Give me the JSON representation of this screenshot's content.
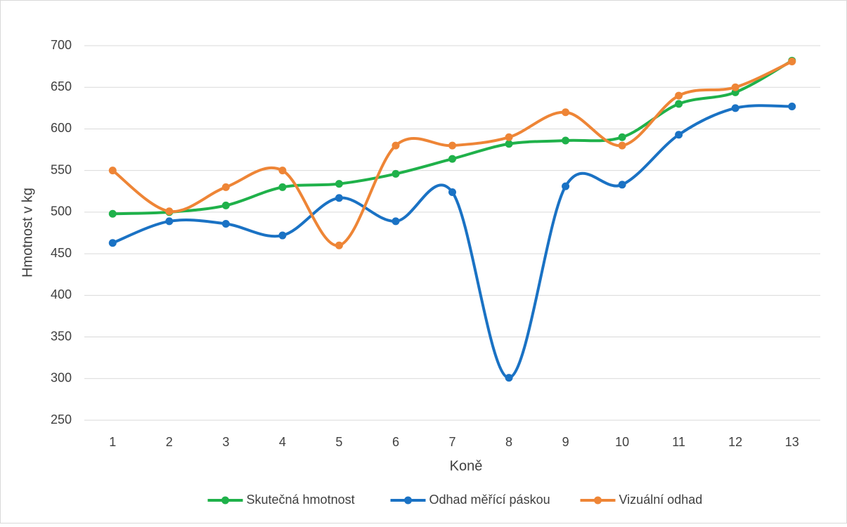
{
  "chart_data": {
    "type": "line",
    "x_label": "Koně",
    "y_label": "Hmotnost v kg",
    "categories": [
      "1",
      "2",
      "3",
      "4",
      "5",
      "6",
      "7",
      "8",
      "9",
      "10",
      "11",
      "12",
      "13"
    ],
    "series": [
      {
        "name": "Skutečná hmotnost",
        "color": "#1fb14a",
        "values": [
          498,
          500,
          508,
          530,
          534,
          546,
          564,
          582,
          586,
          590,
          630,
          644,
          682
        ]
      },
      {
        "name": "Odhad měřící páskou",
        "color": "#1a72c4",
        "values": [
          463,
          489,
          486,
          472,
          517,
          489,
          524,
          301,
          531,
          533,
          593,
          625,
          627
        ]
      },
      {
        "name": "Vizuální odhad",
        "color": "#ee8536",
        "values": [
          550,
          501,
          530,
          550,
          460,
          580,
          580,
          590,
          620,
          580,
          640,
          650,
          681
        ]
      }
    ],
    "ylim": [
      250,
      700
    ],
    "yticks": [
      250,
      300,
      350,
      400,
      450,
      500,
      550,
      600,
      650,
      700
    ],
    "grid": true,
    "smooth": true,
    "legend": "bottom"
  }
}
